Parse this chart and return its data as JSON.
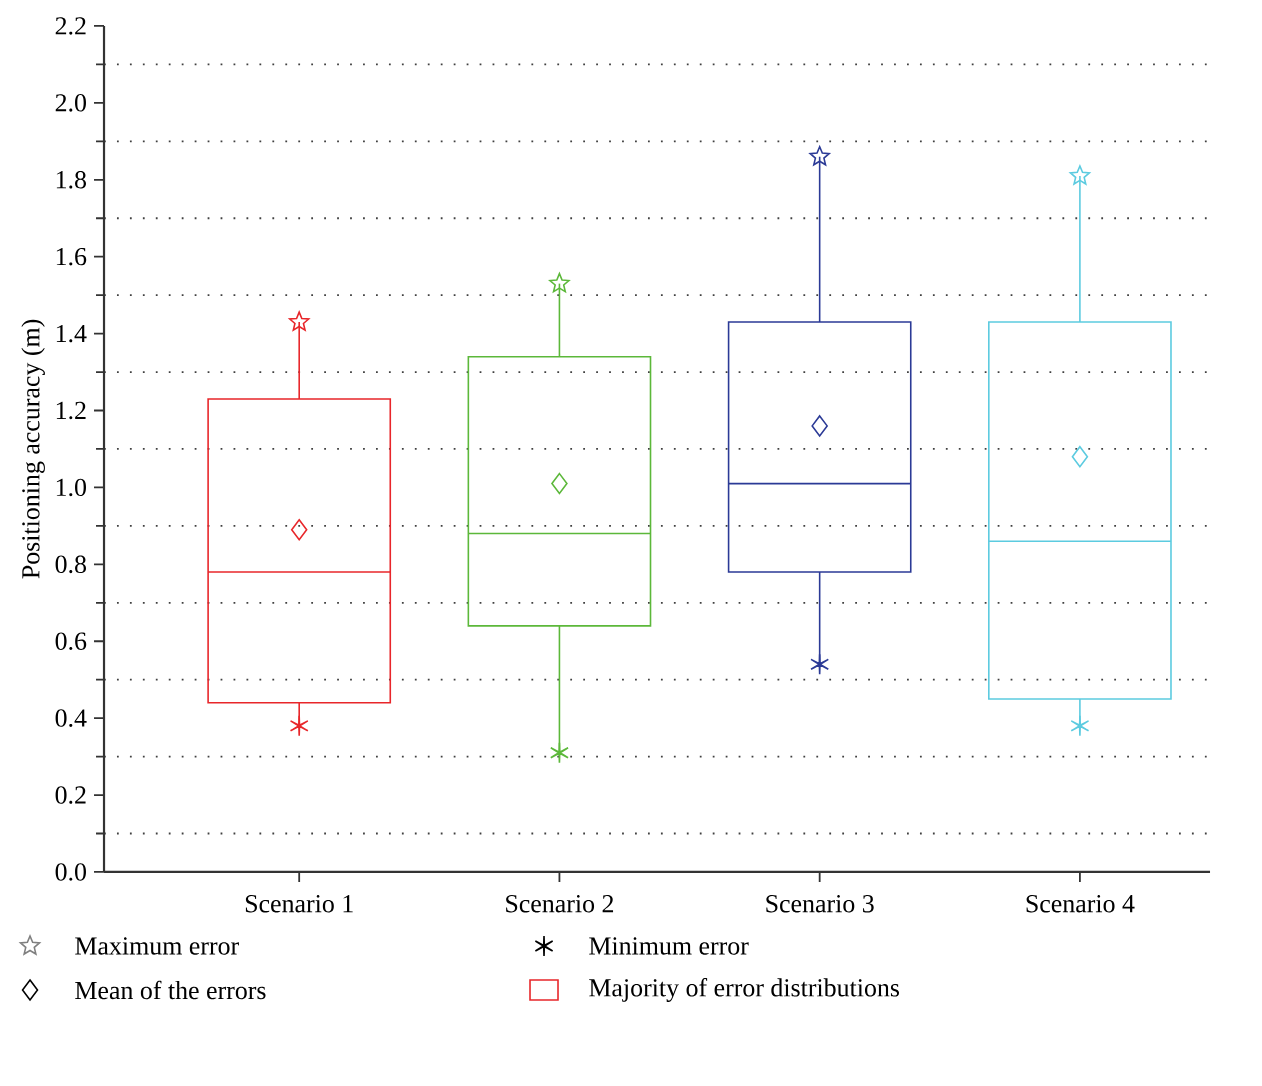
{
  "chart_data": {
    "type": "box",
    "ylabel": "Positioning accuracy (m)",
    "categories": [
      "Scenario 1",
      "Scenario 2",
      "Scenario 3",
      "Scenario 4"
    ],
    "ylim": [
      0,
      2.2
    ],
    "yticks": [
      {
        "value": 0,
        "label": "0.0"
      },
      {
        "value": 0.1,
        "label": null
      },
      0.2,
      {
        "value": 0.3,
        "label": null
      },
      0.4,
      {
        "value": 0.5,
        "label": null
      },
      0.6,
      {
        "value": 0.7,
        "label": null
      },
      0.8,
      {
        "value": 0.9,
        "label": null
      },
      {
        "value": 1.0,
        "label": "1.0"
      },
      {
        "value": 1.1,
        "label": null
      },
      1.2,
      {
        "value": 1.3,
        "label": null
      },
      1.4,
      {
        "value": 1.5,
        "label": null
      },
      1.6,
      {
        "value": 1.7,
        "label": null
      },
      1.8,
      {
        "value": 1.9,
        "label": null
      },
      {
        "value": 2.0,
        "label": "2.0"
      },
      {
        "value": 2.1,
        "label": null
      },
      2.2
    ],
    "grid": true,
    "annotations": [
      "Maximum error",
      "Minimum error",
      "Mean of the errors",
      "Majority of error distributions"
    ],
    "series": [
      {
        "type": "scatter",
        "marker": "star",
        "values": [
          1.43,
          1.53,
          1.86,
          1.81
        ],
        "colors": [
          "#e8262a",
          "#5cb83a",
          "#2b3a96",
          "#5ccbe0"
        ]
      },
      {
        "type": "scatter",
        "marker": "cross",
        "values": [
          0.38,
          0.31,
          0.54,
          0.38
        ],
        "colors": [
          "#e8262a",
          "#5cb83a",
          "#2b3a96",
          "#5ccbe0"
        ]
      },
      {
        "type": "scatter",
        "marker": "diamond",
        "values": [
          0.89,
          1.01,
          1.16,
          1.08
        ],
        "colors": [
          "#e8262a",
          "#5cb83a",
          "#2b3a96",
          "#5ccbe0"
        ]
      },
      {
        "type": "box",
        "colors": [
          "#e8262a",
          "#5cb83a",
          "#2b3a96",
          "#5ccbe0"
        ],
        "boxes": [
          {
            "low": 0.38,
            "q1": 0.44,
            "median": 0.78,
            "q3": 1.23,
            "high": 1.43
          },
          {
            "low": 0.31,
            "q1": 0.64,
            "median": 0.88,
            "q3": 1.34,
            "high": 1.53
          },
          {
            "low": 0.54,
            "q1": 0.78,
            "median": 1.01,
            "q3": 1.43,
            "high": 1.86
          },
          {
            "low": 0.38,
            "q1": 0.45,
            "median": 0.86,
            "q3": 1.43,
            "high": 1.81
          }
        ]
      }
    ]
  }
}
